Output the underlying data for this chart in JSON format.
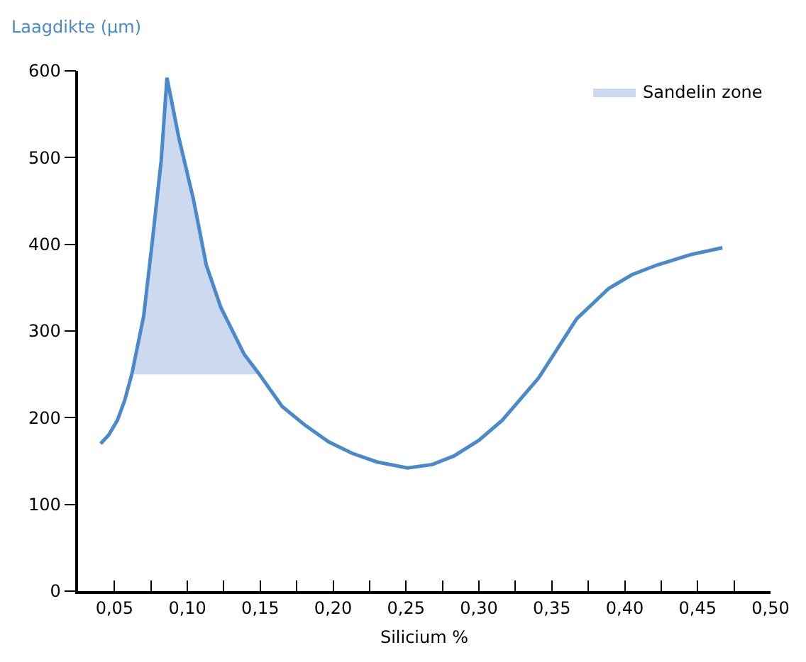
{
  "chart_data": {
    "type": "line",
    "xlabel": "Silicium %",
    "ylabel": "Laagdikte (µm)",
    "xlim": [
      0.025,
      0.5
    ],
    "xticks": [
      {
        "value": 0.05,
        "label": "0,05"
      },
      {
        "value": 0.075,
        "label": null
      },
      {
        "value": 0.1,
        "label": "0,10"
      },
      {
        "value": 0.125,
        "label": null
      },
      {
        "value": 0.15,
        "label": "0,15"
      },
      {
        "value": 0.175,
        "label": null
      },
      {
        "value": 0.2,
        "label": "0,20"
      },
      {
        "value": 0.225,
        "label": null
      },
      {
        "value": 0.25,
        "label": "0,25"
      },
      {
        "value": 0.275,
        "label": null
      },
      {
        "value": 0.3,
        "label": "0,30"
      },
      {
        "value": 0.325,
        "label": null
      },
      {
        "value": 0.35,
        "label": "0,35"
      },
      {
        "value": 0.375,
        "label": null
      },
      {
        "value": 0.4,
        "label": "0,40"
      },
      {
        "value": 0.425,
        "label": null
      },
      {
        "value": 0.45,
        "label": "0,45"
      },
      {
        "value": 0.475,
        "label": null
      },
      {
        "value": 0.5,
        "label": "0,50"
      }
    ],
    "ylim": [
      0,
      600
    ],
    "yticks": [
      0,
      100,
      200,
      300,
      400,
      500,
      600
    ],
    "legend": "top right",
    "series": [
      {
        "type": "area",
        "name": "Sandelin zone",
        "color": "#cdd9ef",
        "x": [
          0.062,
          0.07,
          0.076,
          0.082,
          0.086,
          0.094,
          0.104,
          0.113,
          0.123,
          0.139,
          0.149
        ],
        "values": [
          null,
          null,
          null,
          null,
          null,
          null,
          null,
          null,
          null,
          null,
          null
        ],
        "upper": [
          251,
          317,
          404,
          496,
          592,
          524,
          453,
          376,
          327,
          273,
          251
        ],
        "lower": [
          250,
          250,
          250,
          250,
          250,
          250,
          250,
          250,
          250,
          250,
          250
        ]
      },
      {
        "color": "#4a8acb",
        "x": [
          0.0405,
          0.046,
          0.052,
          0.057,
          0.062,
          0.07,
          0.076,
          0.082,
          0.086,
          0.094,
          0.104,
          0.113,
          0.123,
          0.139,
          0.149,
          0.165,
          0.181,
          0.197,
          0.213,
          0.23,
          0.251,
          0.268,
          0.283,
          0.3,
          0.316,
          0.341,
          0.367,
          0.389,
          0.405,
          0.422,
          0.445,
          0.467
        ],
        "values": [
          170,
          180,
          197,
          220,
          251,
          317,
          404,
          496,
          592,
          524,
          453,
          376,
          327,
          273,
          251,
          213,
          191,
          172,
          159,
          149,
          142,
          146,
          156,
          174,
          197,
          246,
          314,
          349,
          365,
          376,
          388,
          396
        ]
      }
    ]
  }
}
